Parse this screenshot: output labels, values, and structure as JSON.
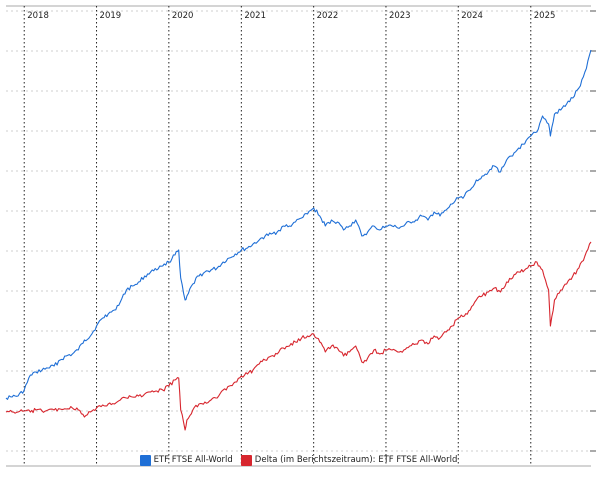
{
  "chart_data": {
    "type": "line",
    "x_tick_labels": [
      "2018",
      "2019",
      "2020",
      "2021",
      "2022",
      "2023",
      "2024",
      "2025"
    ],
    "x_range": [
      "2017-10-01",
      "2025-11-01"
    ],
    "grid": true,
    "legend_position": "bottom",
    "series": [
      {
        "name": "ETF FTSE All-World",
        "color": "#1f6fd6",
        "x": [
          "2017-10-01",
          "2017-11-01",
          "2017-12-01",
          "2018-01-01",
          "2018-02-01",
          "2018-03-01",
          "2018-04-01",
          "2018-05-01",
          "2018-06-01",
          "2018-07-01",
          "2018-08-01",
          "2018-09-01",
          "2018-10-01",
          "2018-11-01",
          "2018-12-01",
          "2019-01-01",
          "2019-02-01",
          "2019-03-01",
          "2019-04-01",
          "2019-05-01",
          "2019-06-01",
          "2019-07-01",
          "2019-08-01",
          "2019-09-01",
          "2019-10-01",
          "2019-11-01",
          "2019-12-01",
          "2020-01-01",
          "2020-02-01",
          "2020-02-20",
          "2020-03-01",
          "2020-03-23",
          "2020-04-01",
          "2020-05-01",
          "2020-06-01",
          "2020-07-01",
          "2020-08-01",
          "2020-09-01",
          "2020-10-01",
          "2020-11-01",
          "2020-12-01",
          "2021-01-01",
          "2021-02-01",
          "2021-03-01",
          "2021-04-01",
          "2021-05-01",
          "2021-06-01",
          "2021-07-01",
          "2021-08-01",
          "2021-09-01",
          "2021-10-01",
          "2021-11-01",
          "2021-12-01",
          "2022-01-01",
          "2022-02-01",
          "2022-03-01",
          "2022-04-01",
          "2022-05-01",
          "2022-06-01",
          "2022-07-01",
          "2022-08-01",
          "2022-09-01",
          "2022-10-01",
          "2022-11-01",
          "2022-12-01",
          "2023-01-01",
          "2023-02-01",
          "2023-03-01",
          "2023-04-01",
          "2023-05-01",
          "2023-06-01",
          "2023-07-01",
          "2023-08-01",
          "2023-09-01",
          "2023-10-01",
          "2023-11-01",
          "2023-12-01",
          "2024-01-01",
          "2024-02-01",
          "2024-03-01",
          "2024-04-01",
          "2024-05-01",
          "2024-06-01",
          "2024-07-01",
          "2024-08-01",
          "2024-09-01",
          "2024-10-01",
          "2024-11-01",
          "2024-12-01",
          "2025-01-01",
          "2025-02-01",
          "2025-03-01",
          "2025-04-01",
          "2025-04-10",
          "2025-05-01",
          "2025-06-01",
          "2025-07-01",
          "2025-08-01",
          "2025-09-01",
          "2025-10-01",
          "2025-11-01"
        ],
        "y": [
          398,
          397,
          396,
          390,
          375,
          372,
          370,
          368,
          366,
          360,
          356,
          354,
          350,
          340,
          336,
          326,
          318,
          314,
          310,
          302,
          290,
          286,
          282,
          276,
          272,
          270,
          266,
          262,
          255,
          250,
          278,
          300,
          296,
          284,
          276,
          272,
          270,
          268,
          262,
          258,
          254,
          250,
          248,
          244,
          240,
          236,
          234,
          232,
          226,
          226,
          222,
          218,
          214,
          208,
          216,
          226,
          220,
          222,
          230,
          226,
          220,
          236,
          232,
          226,
          230,
          226,
          226,
          228,
          226,
          222,
          220,
          216,
          220,
          212,
          216,
          210,
          204,
          198,
          196,
          190,
          180,
          176,
          172,
          166,
          172,
          160,
          156,
          148,
          144,
          136,
          132,
          116,
          124,
          136,
          114,
          110,
          104,
          98,
          88,
          72,
          50
        ]
      },
      {
        "name": "Delta (im Berichtszeitraum): ETF FTSE All-World",
        "color": "#d7262e",
        "x": [
          "2017-10-01",
          "2017-11-01",
          "2017-12-01",
          "2018-01-01",
          "2018-02-01",
          "2018-03-01",
          "2018-04-01",
          "2018-05-01",
          "2018-06-01",
          "2018-07-01",
          "2018-08-01",
          "2018-09-01",
          "2018-10-01",
          "2018-11-01",
          "2018-12-01",
          "2019-01-01",
          "2019-02-01",
          "2019-03-01",
          "2019-04-01",
          "2019-05-01",
          "2019-06-01",
          "2019-07-01",
          "2019-08-01",
          "2019-09-01",
          "2019-10-01",
          "2019-11-01",
          "2019-12-01",
          "2020-01-01",
          "2020-02-01",
          "2020-02-20",
          "2020-03-01",
          "2020-03-23",
          "2020-04-01",
          "2020-05-01",
          "2020-06-01",
          "2020-07-01",
          "2020-08-01",
          "2020-09-01",
          "2020-10-01",
          "2020-11-01",
          "2020-12-01",
          "2021-01-01",
          "2021-02-01",
          "2021-03-01",
          "2021-04-01",
          "2021-05-01",
          "2021-06-01",
          "2021-07-01",
          "2021-08-01",
          "2021-09-01",
          "2021-10-01",
          "2021-11-01",
          "2021-12-01",
          "2022-01-01",
          "2022-02-01",
          "2022-03-01",
          "2022-04-01",
          "2022-05-01",
          "2022-06-01",
          "2022-07-01",
          "2022-08-01",
          "2022-09-01",
          "2022-10-01",
          "2022-11-01",
          "2022-12-01",
          "2023-01-01",
          "2023-02-01",
          "2023-03-01",
          "2023-04-01",
          "2023-05-01",
          "2023-06-01",
          "2023-07-01",
          "2023-08-01",
          "2023-09-01",
          "2023-10-01",
          "2023-11-01",
          "2023-12-01",
          "2024-01-01",
          "2024-02-01",
          "2024-03-01",
          "2024-04-01",
          "2024-05-01",
          "2024-06-01",
          "2024-07-01",
          "2024-08-01",
          "2024-09-01",
          "2024-10-01",
          "2024-11-01",
          "2024-12-01",
          "2025-01-01",
          "2025-02-01",
          "2025-03-01",
          "2025-04-01",
          "2025-04-10",
          "2025-05-01",
          "2025-06-01",
          "2025-07-01",
          "2025-08-01",
          "2025-09-01",
          "2025-10-01",
          "2025-11-01"
        ],
        "y": [
          412,
          412,
          412,
          411,
          412,
          410,
          411,
          410,
          410,
          409,
          409,
          408,
          410,
          417,
          412,
          408,
          405,
          404,
          404,
          400,
          398,
          397,
          396,
          394,
          392,
          391,
          390,
          386,
          380,
          378,
          410,
          430,
          420,
          410,
          404,
          402,
          400,
          398,
          390,
          386,
          382,
          376,
          374,
          370,
          364,
          360,
          356,
          354,
          348,
          346,
          342,
          338,
          336,
          334,
          342,
          352,
          346,
          348,
          356,
          352,
          346,
          362,
          358,
          350,
          354,
          350,
          350,
          352,
          350,
          346,
          344,
          340,
          344,
          336,
          338,
          332,
          326,
          318,
          316,
          310,
          300,
          296,
          292,
          288,
          292,
          282,
          278,
          272,
          270,
          266,
          262,
          270,
          290,
          326,
          300,
          290,
          284,
          276,
          268,
          256,
          242
        ]
      }
    ]
  },
  "legend": {
    "items": [
      {
        "label": "ETF FTSE All-World",
        "color": "#1f6fd6"
      },
      {
        "label": "Delta (im Berichtszeitraum): ETF FTSE All-World",
        "color": "#d7262e"
      }
    ]
  }
}
